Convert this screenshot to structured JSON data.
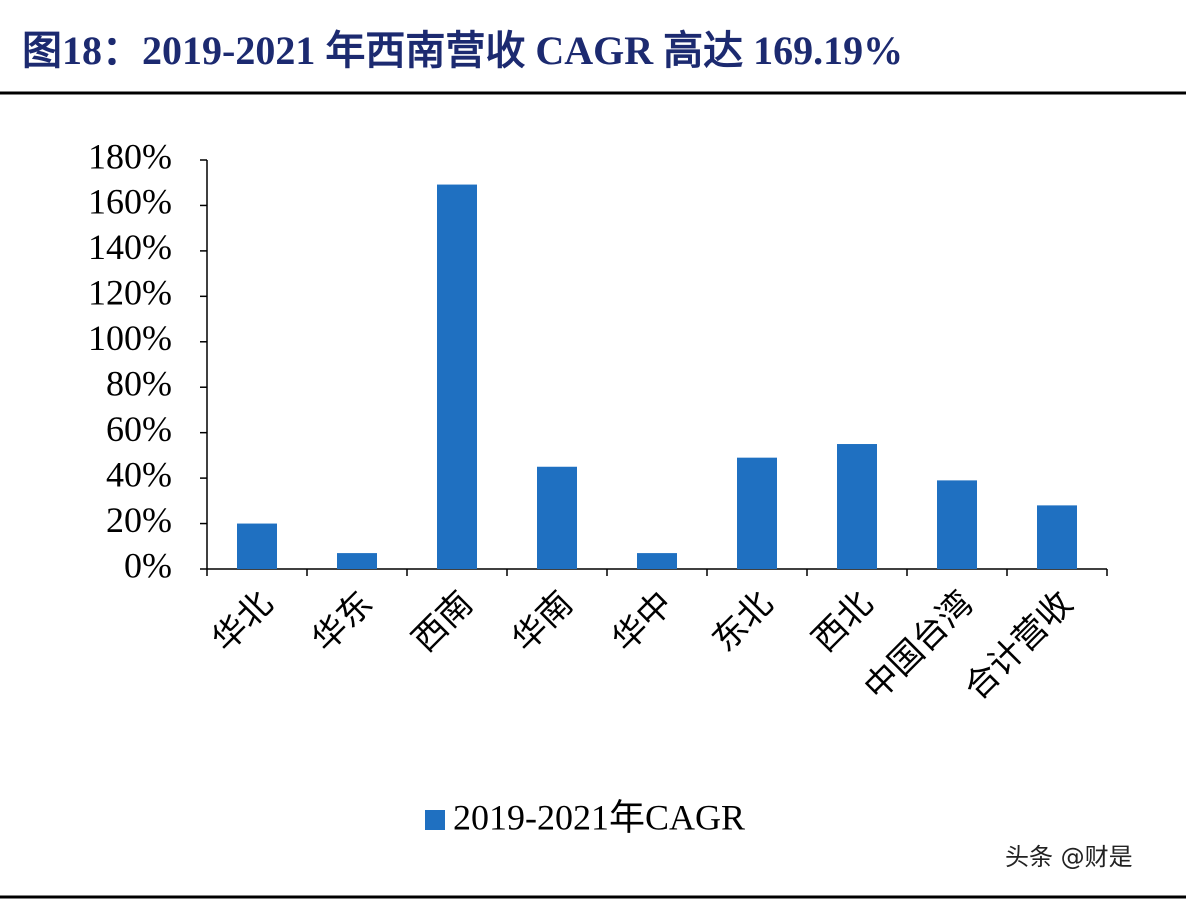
{
  "chart_data": {
    "type": "bar",
    "title": "图18：2019-2021 年西南营收 CAGR 高达 169.19%",
    "categories": [
      "华北",
      "华东",
      "西南",
      "华南",
      "华中",
      "东北",
      "西北",
      "中国台湾",
      "合计营收"
    ],
    "series": [
      {
        "name": "2019-2021年CAGR",
        "color": "#1f70c1",
        "values": [
          20,
          7,
          169.19,
          45,
          7,
          49,
          55,
          39,
          28
        ]
      }
    ],
    "ylim": [
      0,
      180
    ],
    "yticks": [
      {
        "value": 0,
        "label": "0%"
      },
      {
        "value": 20,
        "label": "20%"
      },
      {
        "value": 40,
        "label": "40%"
      },
      {
        "value": 60,
        "label": "60%"
      },
      {
        "value": 80,
        "label": "80%"
      },
      {
        "value": 100,
        "label": "100%"
      },
      {
        "value": 120,
        "label": "120%"
      },
      {
        "value": 140,
        "label": "140%"
      },
      {
        "value": 160,
        "label": "160%"
      },
      {
        "value": 180,
        "label": "180%"
      }
    ],
    "legend": "bottom"
  },
  "watermark": "头条 @财是"
}
